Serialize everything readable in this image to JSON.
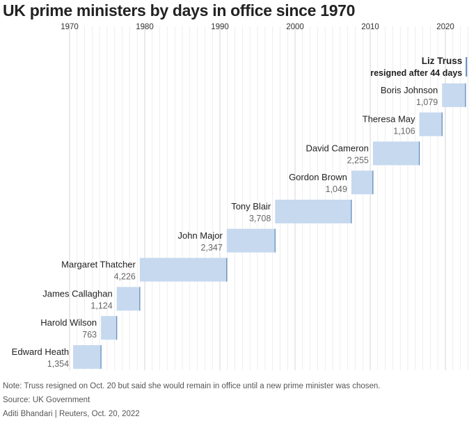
{
  "title": "UK prime ministers by days in office since 1970",
  "footer": {
    "note": "Note: Truss resigned on Oct. 20 but said she would remain in office until a new prime minister was chosen.",
    "source": "Source: UK Government",
    "credit": "Aditi Bhandari  |  Reuters, Oct. 20, 2022"
  },
  "chart_data": {
    "type": "bar",
    "orientation": "horizontal-timeline",
    "title": "UK prime ministers by days in office since 1970",
    "x_axis": {
      "ticks": [
        "1970",
        "1980",
        "1990",
        "2000",
        "2010",
        "2020"
      ],
      "range": [
        1970,
        2023
      ],
      "position": "top"
    },
    "grid": true,
    "colors": {
      "bar_fill": "#c6d9ef",
      "bar_edge": "#5b87b8",
      "grid": "#e3e3e3"
    },
    "series": [
      {
        "name": "Edward Heath",
        "days": "1,354",
        "start": 1970.47,
        "end": 1974.18
      },
      {
        "name": "Harold Wilson",
        "days": "763",
        "start": 1974.18,
        "end": 1976.27
      },
      {
        "name": "James Callaghan",
        "days": "1,124",
        "start": 1976.27,
        "end": 1979.34
      },
      {
        "name": "Margaret Thatcher",
        "days": "4,226",
        "start": 1979.34,
        "end": 1990.91
      },
      {
        "name": "John Major",
        "days": "2,347",
        "start": 1990.91,
        "end": 1997.34
      },
      {
        "name": "Tony Blair",
        "days": "3,708",
        "start": 1997.34,
        "end": 2007.49
      },
      {
        "name": "Gordon Brown",
        "days": "1,049",
        "start": 2007.49,
        "end": 2010.36
      },
      {
        "name": "David Cameron",
        "days": "2,255",
        "start": 2010.36,
        "end": 2016.53
      },
      {
        "name": "Theresa May",
        "days": "1,106",
        "start": 2016.53,
        "end": 2019.56
      },
      {
        "name": "Boris Johnson",
        "days": "1,079",
        "start": 2019.56,
        "end": 2022.68
      },
      {
        "name": "Liz Truss",
        "days": "resigned after 44 days",
        "start": 2022.68,
        "end": 2022.8,
        "highlight": true
      }
    ]
  }
}
